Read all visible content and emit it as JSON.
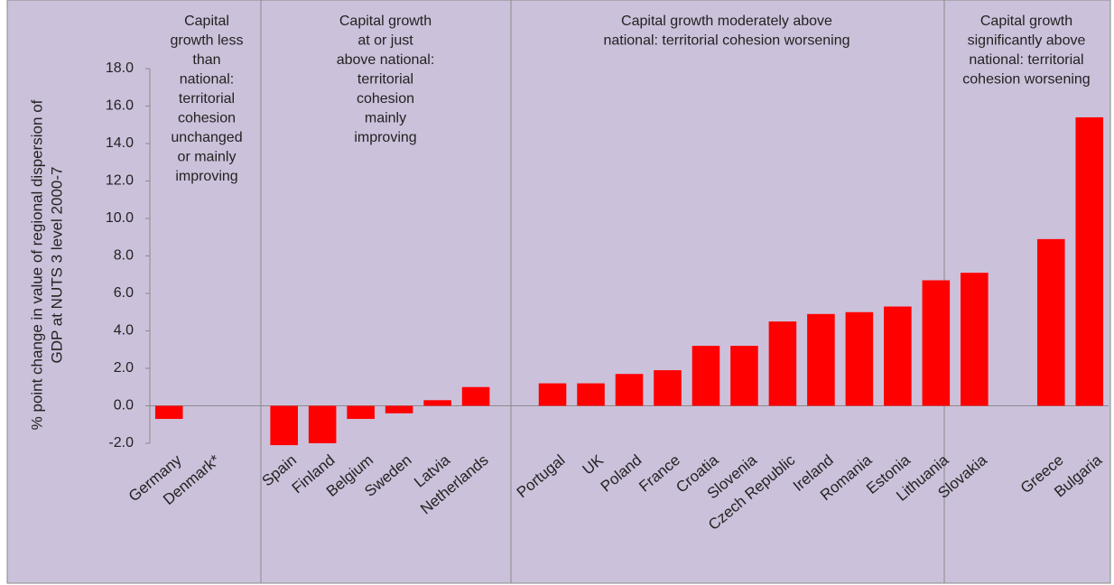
{
  "chart_data": {
    "type": "bar",
    "ylabel_lines": [
      "% point change in value of regional dispersion of",
      "GDP at NUTS 3 level 2000-7"
    ],
    "categories": [
      "Germany",
      "Denmark*",
      null,
      "Spain",
      "Finland",
      "Belgium",
      "Sweden",
      "Latvia",
      "Netherlands",
      null,
      "Portugal",
      "UK",
      "Poland",
      "France",
      "Croatia",
      "Slovenia",
      "Czech Republic",
      "Ireland",
      "Romania",
      "Estonia",
      "Lithuania",
      "Slovakia",
      null,
      "Greece",
      "Bulgaria"
    ],
    "values": [
      -0.7,
      0,
      null,
      -2.1,
      -2.0,
      -0.7,
      -0.4,
      0.3,
      1.0,
      null,
      1.2,
      1.2,
      1.7,
      1.9,
      3.2,
      3.2,
      4.5,
      4.9,
      5.0,
      5.3,
      6.7,
      7.1,
      null,
      8.9,
      15.4
    ],
    "color": "#ff0000",
    "ylim": [
      -2,
      18
    ],
    "yticks": [
      {
        "value": -2,
        "label": "-2.0"
      },
      {
        "value": 0,
        "label": "0.0"
      },
      {
        "value": 2,
        "label": "2.0"
      },
      {
        "value": 4,
        "label": "4.0"
      },
      {
        "value": 6,
        "label": "6.0"
      },
      {
        "value": 8,
        "label": "8.0"
      },
      {
        "value": 10,
        "label": "10.0"
      },
      {
        "value": 12,
        "label": "12.0"
      },
      {
        "value": 14,
        "label": "14.0"
      },
      {
        "value": 16,
        "label": "16.0"
      },
      {
        "value": 18,
        "label": "18.0"
      }
    ],
    "groups": [
      {
        "lines": [
          "Capital",
          "growth less",
          "than",
          "national:",
          "territorial",
          "cohesion",
          "unchanged",
          "or mainly",
          "improving"
        ]
      },
      {
        "lines": [
          "Capital growth",
          "at or just",
          "above national:",
          "territorial",
          "cohesion",
          "mainly",
          "improving"
        ]
      },
      {
        "lines": [
          "Capital growth moderately above",
          "national: territorial cohesion worsening"
        ]
      },
      {
        "lines": [
          "Capital growth",
          "significantly above",
          "national: territorial",
          "cohesion worsening"
        ]
      }
    ]
  }
}
